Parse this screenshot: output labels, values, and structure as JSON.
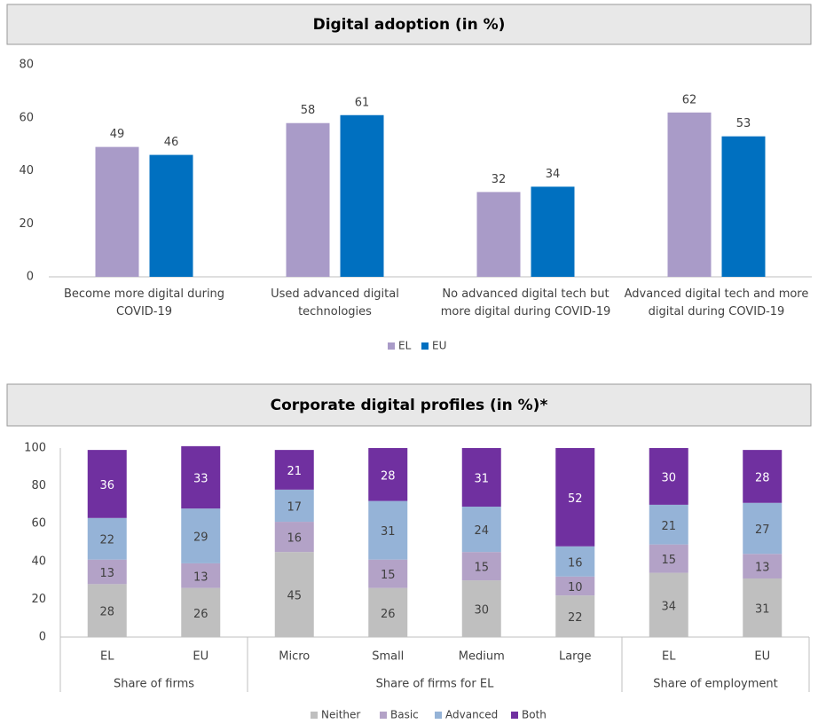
{
  "chart_data": [
    {
      "type": "bar",
      "title": "Digital adoption (in %)",
      "categories": [
        "Become more digital during COVID-19",
        "Used advanced digital technologies",
        "No advanced digital tech but more digital during COVID-19",
        "Advanced digital tech and more digital during COVID-19"
      ],
      "series": [
        {
          "name": "EL",
          "color": "#a99bc8",
          "values": [
            49,
            58,
            32,
            62
          ]
        },
        {
          "name": "EU",
          "color": "#0070c0",
          "values": [
            46,
            61,
            34,
            53
          ]
        }
      ],
      "ylim": [
        0,
        80
      ],
      "yticks": [
        0,
        20,
        40,
        60,
        80
      ],
      "legend": "bottom"
    },
    {
      "type": "stacked-bar",
      "title": "Corporate digital profiles (in %)*",
      "groups": [
        {
          "name": "Share of firms",
          "categories": [
            "EL",
            "EU"
          ]
        },
        {
          "name": "Share of firms for EL",
          "categories": [
            "Micro",
            "Small",
            "Medium",
            "Large"
          ]
        },
        {
          "name": "Share of employment",
          "categories": [
            "EL",
            "EU"
          ]
        }
      ],
      "series": [
        {
          "name": "Neither",
          "color": "#bfbfbf",
          "values": [
            28,
            26,
            45,
            26,
            30,
            22,
            34,
            31
          ]
        },
        {
          "name": "Basic",
          "color": "#b3a2c7",
          "values": [
            13,
            13,
            16,
            15,
            15,
            10,
            15,
            13
          ]
        },
        {
          "name": "Advanced",
          "color": "#95b3d7",
          "values": [
            22,
            29,
            17,
            31,
            24,
            16,
            21,
            27
          ]
        },
        {
          "name": "Both",
          "color": "#7030a0",
          "values": [
            36,
            33,
            21,
            28,
            31,
            52,
            30,
            28
          ]
        }
      ],
      "ylim": [
        0,
        100
      ],
      "yticks": [
        0,
        20,
        40,
        60,
        80,
        100
      ],
      "legend": "bottom"
    }
  ]
}
